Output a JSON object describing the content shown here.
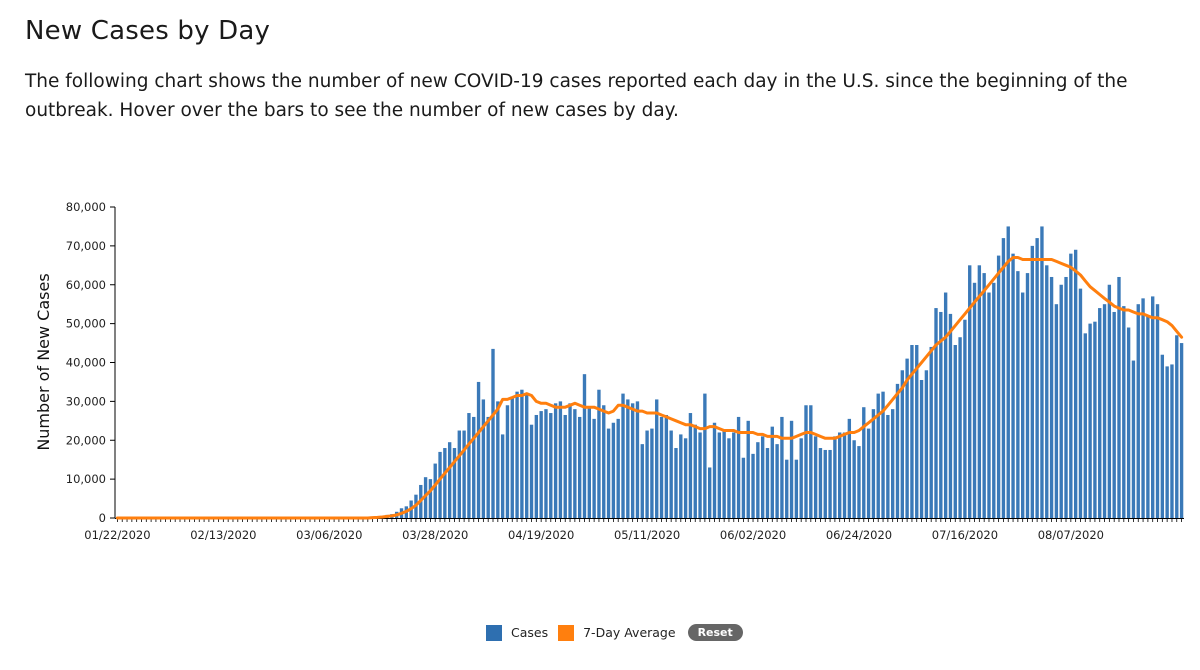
{
  "header": {
    "title": "New Cases by Day",
    "description": "The following chart shows the number of new COVID-19 cases reported each day in the U.S. since the beginning of the outbreak. Hover over the bars to see the number of new cases by day."
  },
  "legend": {
    "cases_label": "Cases",
    "avg_label": "7-Day Average",
    "reset_label": "Reset"
  },
  "colors": {
    "bar": "#3a79b8",
    "line": "#ff7f0e",
    "legend_cases": "#2e6fb0",
    "legend_avg": "#ff7f0e"
  },
  "chart_data": {
    "type": "bar",
    "title": "New Cases by Day",
    "xlabel": "",
    "ylabel": "Number of New Cases",
    "ylim": [
      0,
      80000
    ],
    "yticks": [
      0,
      10000,
      20000,
      30000,
      40000,
      50000,
      60000,
      70000,
      80000
    ],
    "ytick_labels": [
      "0",
      "10,000",
      "20,000",
      "30,000",
      "40,000",
      "50,000",
      "60,000",
      "70,000",
      "80,000"
    ],
    "xtick_labels": [
      "01/22/2020",
      "02/13/2020",
      "03/06/2020",
      "03/28/2020",
      "04/19/2020",
      "05/11/2020",
      "06/02/2020",
      "06/24/2020",
      "07/16/2020",
      "08/07/2020"
    ],
    "start_date": "01/22/2020",
    "days": 216,
    "series": [
      {
        "name": "Cases",
        "type": "bar",
        "values": [
          0,
          0,
          0,
          0,
          0,
          0,
          0,
          0,
          0,
          0,
          0,
          0,
          0,
          0,
          0,
          0,
          0,
          0,
          0,
          0,
          0,
          0,
          0,
          0,
          0,
          0,
          0,
          0,
          0,
          0,
          0,
          0,
          0,
          0,
          0,
          0,
          0,
          0,
          0,
          0,
          0,
          0,
          0,
          0,
          0,
          0,
          0,
          0,
          0,
          0,
          0,
          50,
          100,
          150,
          250,
          400,
          800,
          1000,
          1600,
          2500,
          3000,
          4500,
          6000,
          8500,
          10500,
          10000,
          14000,
          17000,
          18000,
          19500,
          18000,
          22500,
          22500,
          27000,
          26000,
          35000,
          30500,
          26000,
          43500,
          30000,
          21500,
          29000,
          31000,
          32500,
          33000,
          32000,
          24000,
          26500,
          27500,
          28000,
          27000,
          29500,
          30000,
          26500,
          29500,
          28000,
          26000,
          37000,
          28500,
          25500,
          33000,
          29000,
          23000,
          24500,
          25500,
          32000,
          30500,
          29500,
          30000,
          19000,
          22500,
          23000,
          30500,
          26000,
          26500,
          22500,
          18000,
          21500,
          20500,
          27000,
          24000,
          22000,
          32000,
          13000,
          24500,
          22000,
          22500,
          20500,
          22000,
          26000,
          15500,
          25000,
          16500,
          19500,
          21000,
          18000,
          23500,
          19000,
          26000,
          15000,
          25000,
          15000,
          20500,
          29000,
          29000,
          21000,
          18000,
          17500,
          17500,
          21000,
          22000,
          22000,
          25500,
          20000,
          18500,
          28500,
          23000,
          28000,
          32000,
          32500,
          26500,
          28000,
          34500,
          38000,
          41000,
          44500,
          44500,
          35500,
          38000,
          44000,
          54000,
          53000,
          58000,
          52500,
          44500,
          46500,
          51000,
          65000,
          60500,
          65000,
          63000,
          58000,
          60500,
          67500,
          72000,
          75000,
          68000,
          63500,
          58000,
          63000,
          70000,
          72000,
          75000,
          65000,
          62000,
          55000,
          60000,
          62000,
          68000,
          69000,
          59000,
          47500,
          50000,
          50500,
          54000,
          55000,
          60000,
          53000,
          62000,
          54500,
          49000,
          40500,
          55000,
          56500,
          52000,
          57000,
          55000,
          42000,
          39000,
          39500,
          47000,
          45000
        ]
      },
      {
        "name": "7-Day Average",
        "type": "line",
        "values": [
          0,
          0,
          0,
          0,
          0,
          0,
          0,
          0,
          0,
          0,
          0,
          0,
          0,
          0,
          0,
          0,
          0,
          0,
          0,
          0,
          0,
          0,
          0,
          0,
          0,
          0,
          0,
          0,
          0,
          0,
          0,
          0,
          0,
          0,
          0,
          0,
          0,
          0,
          0,
          0,
          0,
          0,
          0,
          0,
          0,
          0,
          0,
          0,
          0,
          0,
          0,
          0,
          0,
          100,
          150,
          250,
          400,
          550,
          800,
          1200,
          1700,
          2400,
          3300,
          4500,
          5800,
          7000,
          8500,
          10000,
          11500,
          13000,
          14500,
          16000,
          17500,
          19000,
          20500,
          22000,
          23500,
          25000,
          26500,
          28000,
          30500,
          30500,
          31000,
          31500,
          31500,
          32000,
          31500,
          30000,
          29500,
          29500,
          29000,
          28500,
          28500,
          28500,
          29000,
          29500,
          29000,
          28500,
          28500,
          28500,
          28000,
          27500,
          27000,
          27500,
          29000,
          29000,
          28500,
          28000,
          27500,
          27500,
          27000,
          27000,
          27000,
          26500,
          26000,
          25500,
          25000,
          24500,
          24000,
          24000,
          23500,
          23000,
          23000,
          23500,
          23500,
          23000,
          22500,
          22500,
          22500,
          22000,
          22000,
          22000,
          22000,
          21500,
          21500,
          21000,
          21000,
          21000,
          20500,
          20500,
          20500,
          21000,
          21500,
          22000,
          22000,
          21500,
          21000,
          20500,
          20500,
          20500,
          21000,
          21500,
          22000,
          22000,
          22500,
          23500,
          24500,
          25500,
          26500,
          27500,
          29000,
          30500,
          32000,
          33500,
          35500,
          37000,
          38500,
          40000,
          41500,
          43000,
          44500,
          45500,
          46500,
          48000,
          49500,
          51000,
          52500,
          54000,
          55500,
          57000,
          58500,
          60000,
          61500,
          63000,
          64500,
          66000,
          67000,
          67000,
          66500,
          66500,
          66500,
          66500,
          66500,
          66500,
          66500,
          66000,
          65500,
          65000,
          64500,
          63500,
          62500,
          61000,
          59500,
          58500,
          57500,
          56500,
          55500,
          54500,
          54000,
          53500,
          53500,
          53000,
          52500,
          52500,
          52000,
          51500,
          51500,
          51000,
          50500,
          49500,
          48000,
          46500
        ]
      }
    ]
  }
}
